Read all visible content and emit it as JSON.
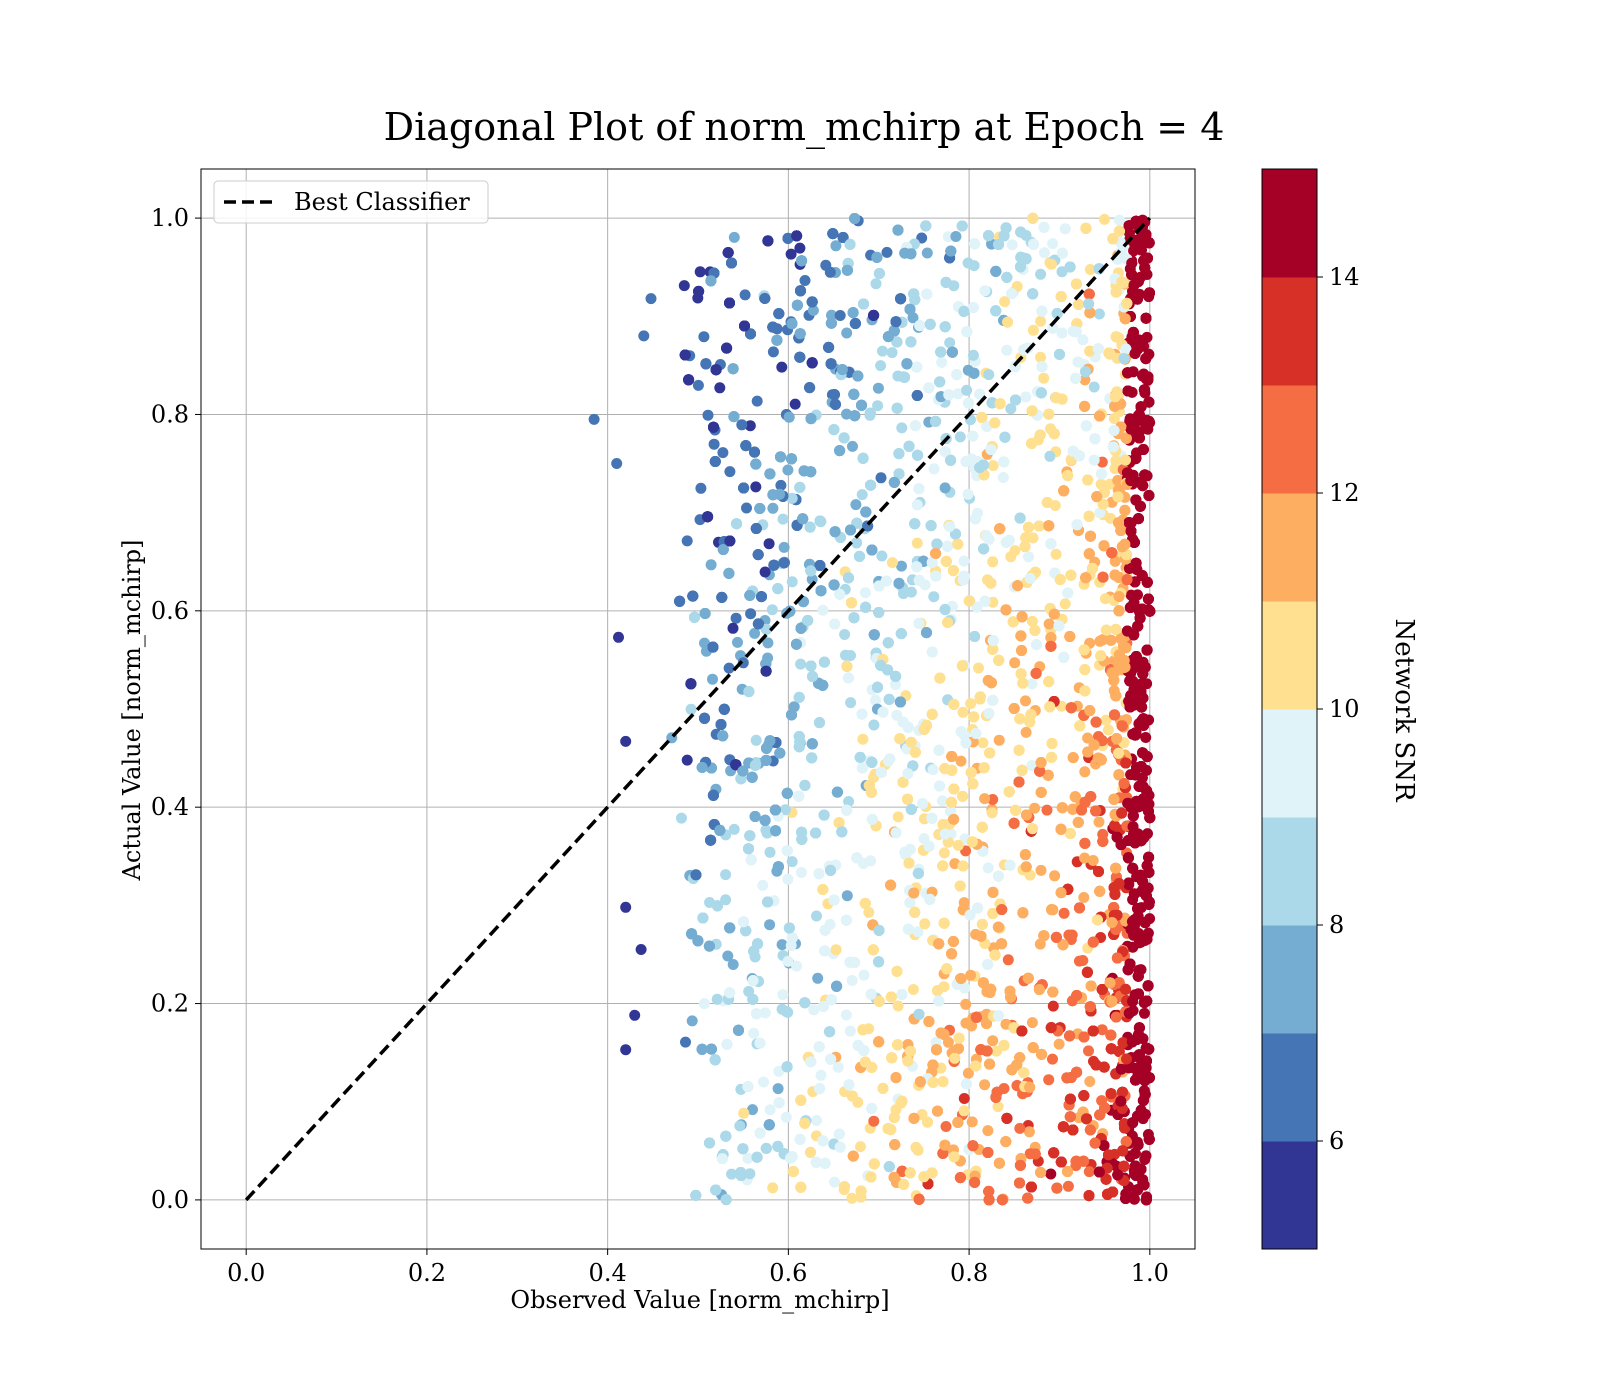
{
  "chart_data": {
    "type": "scatter",
    "title": "Diagonal Plot of norm_mchirp at Epoch = 4",
    "xlabel": "Observed Value [norm_mchirp]",
    "ylabel": "Actual Value [norm_mchirp]",
    "xlim": [
      -0.05,
      1.05
    ],
    "ylim": [
      -0.05,
      1.05
    ],
    "x_ticks": [
      "0.0",
      "0.2",
      "0.4",
      "0.6",
      "0.8",
      "1.0"
    ],
    "y_ticks": [
      "0.0",
      "0.2",
      "0.4",
      "0.6",
      "0.8",
      "1.0"
    ],
    "grid": true,
    "legend": {
      "placement": "upper-left",
      "entries": [
        "Best Classifier"
      ]
    },
    "reference_line": {
      "name": "Best Classifier",
      "style": "dashed",
      "color": "#000000",
      "from": [
        0,
        0
      ],
      "to": [
        1,
        1
      ]
    },
    "colorbar": {
      "label": "Network SNR",
      "min": 5,
      "max": 15,
      "ticks": [
        "6",
        "8",
        "10",
        "12",
        "14"
      ],
      "levels": [
        5,
        6,
        7,
        8,
        9,
        10,
        11,
        12,
        13,
        14,
        15
      ],
      "colors": [
        "#313695",
        "#4575b4",
        "#74add1",
        "#abd9e9",
        "#e0f3f8",
        "#fee090",
        "#fdae61",
        "#f46d43",
        "#d73027",
        "#a50026"
      ]
    },
    "scatter_summary": {
      "x_range": [
        0.45,
        1.0
      ],
      "y_range": [
        0.0,
        1.0
      ],
      "outliers": [
        [
          0.385,
          0.795
        ],
        [
          0.41,
          0.75
        ],
        [
          0.412,
          0.573
        ],
        [
          0.42,
          0.467
        ],
        [
          0.44,
          0.88
        ],
        [
          0.448,
          0.918
        ],
        [
          0.42,
          0.298
        ],
        [
          0.42,
          0.153
        ],
        [
          0.43,
          0.188
        ],
        [
          0.437,
          0.255
        ]
      ],
      "trend": "low SNR points lie at low observed values; high SNR points cluster near observed = 1.0"
    }
  }
}
